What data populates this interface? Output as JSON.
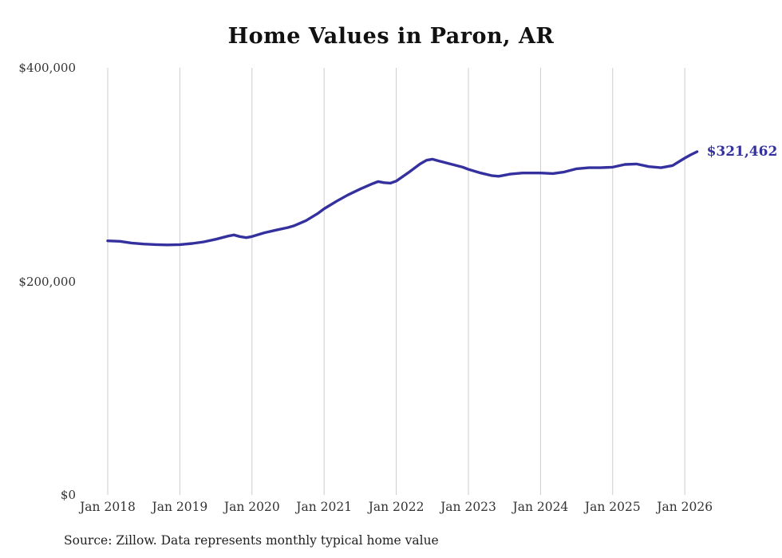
{
  "chart_data": {
    "type": "line",
    "title": "Home Values in Paron, AR",
    "source_note": "Source: Zillow. Data represents monthly typical home value",
    "end_label": "$321,462",
    "line_color": "#34319f",
    "grid_color": "#cccccc",
    "legend": "none",
    "grid": "vertical-only",
    "xlabel": "",
    "ylabel": "",
    "x_ticks": [
      {
        "label": "Jan 2018",
        "year": 2018
      },
      {
        "label": "Jan 2019",
        "year": 2019
      },
      {
        "label": "Jan 2020",
        "year": 2020
      },
      {
        "label": "Jan 2021",
        "year": 2021
      },
      {
        "label": "Jan 2022",
        "year": 2022
      },
      {
        "label": "Jan 2023",
        "year": 2023
      },
      {
        "label": "Jan 2024",
        "year": 2024
      },
      {
        "label": "Jan 2025",
        "year": 2025
      },
      {
        "label": "Jan 2026",
        "year": 2026
      }
    ],
    "y_ticks": [
      {
        "label": "$0",
        "value": 0
      },
      {
        "label": "$200,000",
        "value": 200000
      },
      {
        "label": "$400,000",
        "value": 400000
      }
    ],
    "ylim": [
      0,
      400000
    ],
    "xlim": [
      2018.0,
      2026.17
    ],
    "series_name": "Typical home value",
    "points": [
      [
        2018.0,
        238000
      ],
      [
        2018.17,
        237500
      ],
      [
        2018.33,
        236000
      ],
      [
        2018.5,
        235000
      ],
      [
        2018.67,
        234500
      ],
      [
        2018.83,
        234200
      ],
      [
        2019.0,
        234500
      ],
      [
        2019.17,
        235500
      ],
      [
        2019.33,
        237000
      ],
      [
        2019.5,
        239500
      ],
      [
        2019.67,
        242500
      ],
      [
        2019.75,
        243500
      ],
      [
        2019.83,
        242000
      ],
      [
        2019.92,
        241000
      ],
      [
        2020.0,
        242000
      ],
      [
        2020.17,
        245500
      ],
      [
        2020.33,
        248000
      ],
      [
        2020.5,
        250500
      ],
      [
        2020.58,
        252000
      ],
      [
        2020.75,
        257000
      ],
      [
        2020.92,
        264000
      ],
      [
        2021.0,
        268000
      ],
      [
        2021.17,
        275000
      ],
      [
        2021.33,
        281000
      ],
      [
        2021.5,
        286500
      ],
      [
        2021.67,
        291500
      ],
      [
        2021.75,
        293500
      ],
      [
        2021.83,
        292500
      ],
      [
        2021.92,
        292000
      ],
      [
        2022.0,
        294000
      ],
      [
        2022.17,
        302000
      ],
      [
        2022.33,
        310000
      ],
      [
        2022.42,
        313500
      ],
      [
        2022.5,
        314500
      ],
      [
        2022.58,
        313000
      ],
      [
        2022.75,
        310000
      ],
      [
        2022.92,
        307000
      ],
      [
        2023.0,
        305000
      ],
      [
        2023.17,
        301500
      ],
      [
        2023.33,
        299000
      ],
      [
        2023.42,
        298500
      ],
      [
        2023.58,
        300500
      ],
      [
        2023.75,
        301500
      ],
      [
        2023.92,
        301500
      ],
      [
        2024.0,
        301500
      ],
      [
        2024.17,
        301000
      ],
      [
        2024.33,
        302500
      ],
      [
        2024.5,
        305500
      ],
      [
        2024.67,
        306500
      ],
      [
        2024.83,
        306500
      ],
      [
        2025.0,
        307000
      ],
      [
        2025.17,
        309500
      ],
      [
        2025.33,
        310000
      ],
      [
        2025.5,
        307500
      ],
      [
        2025.67,
        306500
      ],
      [
        2025.83,
        308500
      ],
      [
        2026.0,
        315500
      ],
      [
        2026.08,
        318500
      ],
      [
        2026.17,
        321462
      ]
    ]
  }
}
